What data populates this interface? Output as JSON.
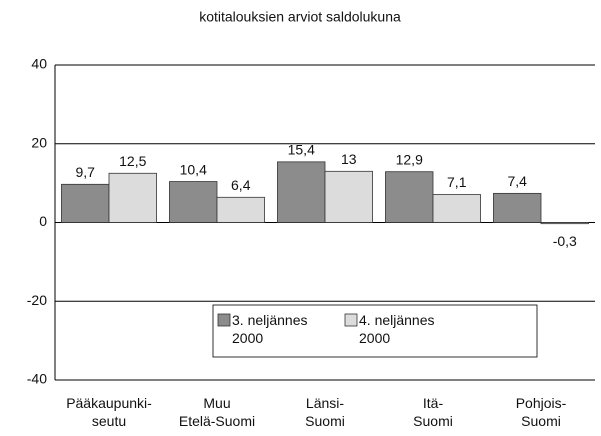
{
  "chart_data": {
    "type": "bar",
    "title": "kotitalouksien arviot saldolukuna",
    "categories": [
      "Pääkaupunki-\nseutu",
      "Muu\nEtelä-Suomi",
      "Länsi-\nSuomi",
      "Itä-\nSuomi",
      "Pohjois-\nSuomi"
    ],
    "series": [
      {
        "name": "3. neljännes\n2000",
        "color": "#8c8c8c",
        "values": [
          9.7,
          10.4,
          15.4,
          12.9,
          7.4
        ],
        "value_labels": [
          "9,7",
          "10,4",
          "15,4",
          "12,9",
          "7,4"
        ]
      },
      {
        "name": "4. neljännes\n2000",
        "color": "#dcdcdc",
        "values": [
          12.5,
          6.4,
          13,
          7.1,
          -0.3
        ],
        "value_labels": [
          "12,5",
          "6,4",
          "13",
          "7,1",
          "-0,3"
        ]
      }
    ],
    "ylim": [
      -40,
      40
    ],
    "yticks": [
      40,
      20,
      0,
      -20,
      -40
    ],
    "grid": true,
    "legend": "bottom"
  }
}
